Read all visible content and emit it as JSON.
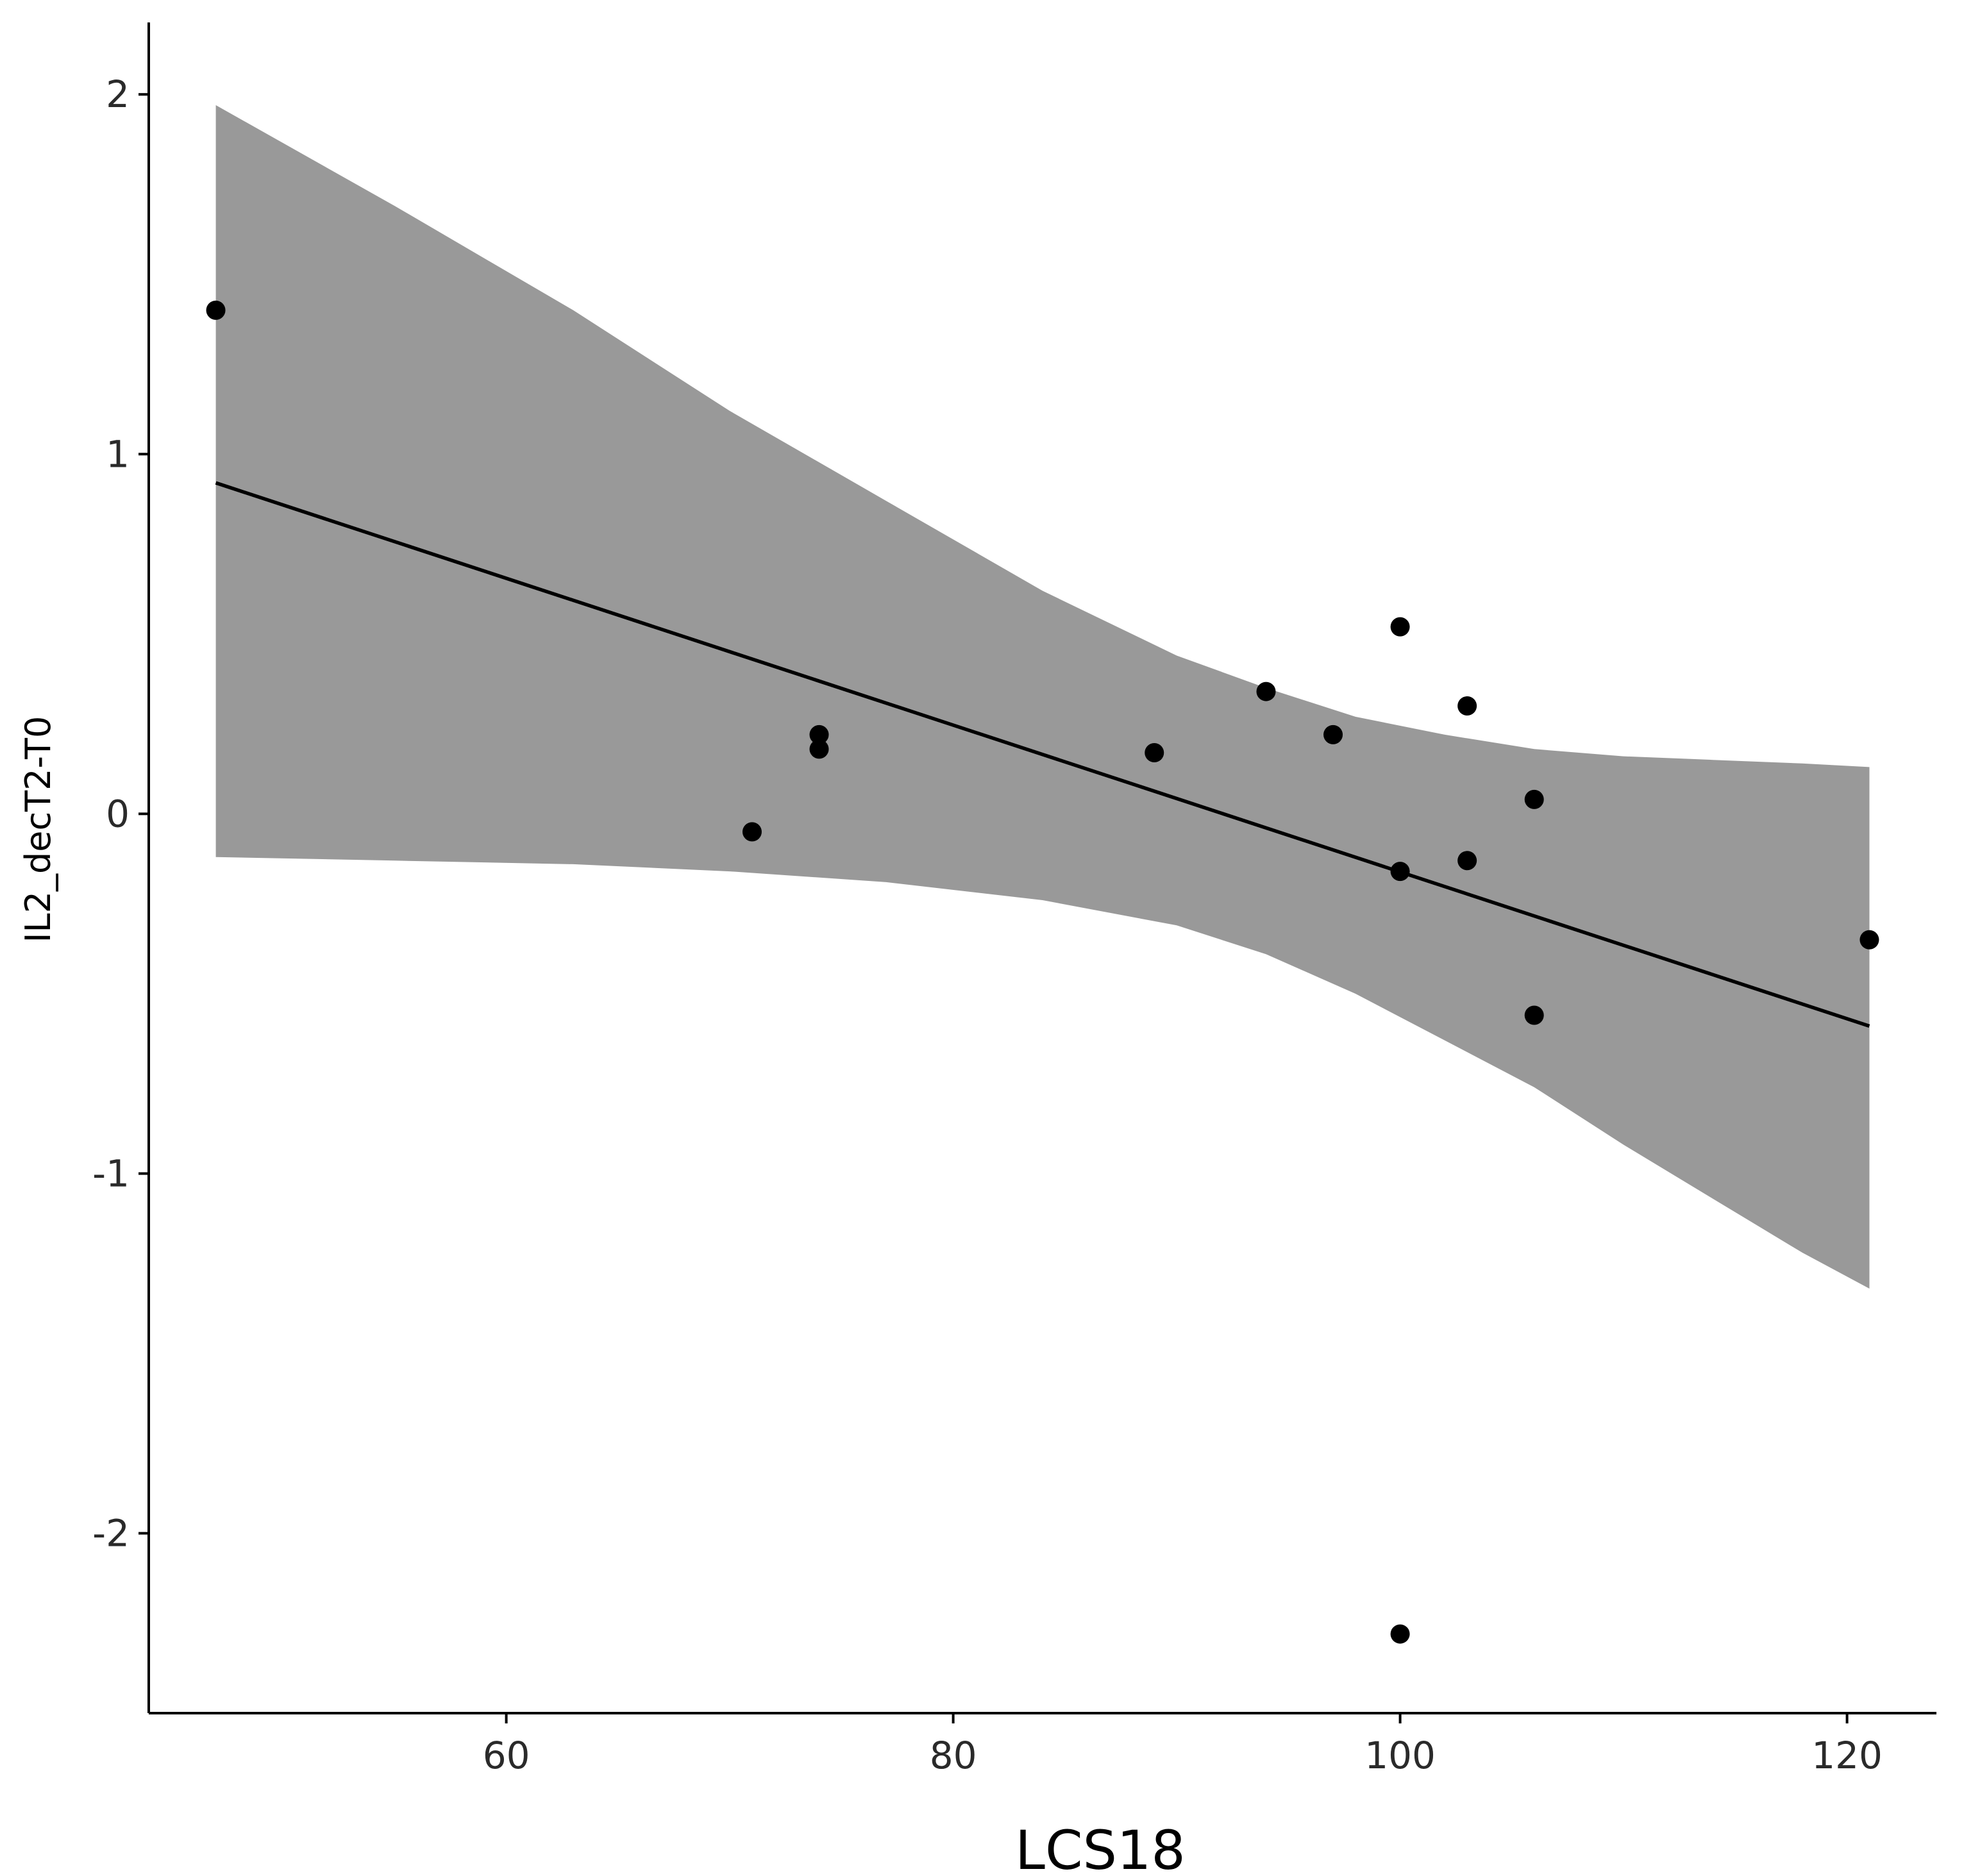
{
  "chart_data": {
    "type": "scatter",
    "xlabel": "LCS18",
    "ylabel": "IL2_decT2-T0",
    "xlim": [
      44,
      124
    ],
    "ylim": [
      -2.5,
      2.2
    ],
    "xticks": [
      60,
      80,
      100,
      120
    ],
    "yticks": [
      -2,
      -1,
      0,
      1,
      2
    ],
    "x_tick_labels": [
      "60",
      "80",
      "100",
      "120"
    ],
    "y_tick_labels": [
      "-2",
      "-1",
      "0",
      "1",
      "2"
    ],
    "grid": false,
    "points": [
      {
        "x": 47,
        "y": 1.4
      },
      {
        "x": 71,
        "y": -0.05
      },
      {
        "x": 74,
        "y": 0.22
      },
      {
        "x": 74,
        "y": 0.18
      },
      {
        "x": 89,
        "y": 0.17
      },
      {
        "x": 94,
        "y": 0.34
      },
      {
        "x": 97,
        "y": 0.22
      },
      {
        "x": 100,
        "y": 0.52
      },
      {
        "x": 100,
        "y": -0.16
      },
      {
        "x": 100,
        "y": -2.28
      },
      {
        "x": 103,
        "y": 0.3
      },
      {
        "x": 103,
        "y": -0.13
      },
      {
        "x": 106,
        "y": 0.04
      },
      {
        "x": 106,
        "y": -0.56
      },
      {
        "x": 121,
        "y": -0.35
      }
    ],
    "regression": {
      "x": [
        47,
        121
      ],
      "y": [
        0.92,
        -0.59
      ]
    },
    "confidence_band": [
      {
        "x": 47,
        "lower": -0.12,
        "upper": 1.97
      },
      {
        "x": 55,
        "lower": -0.13,
        "upper": 1.69
      },
      {
        "x": 63,
        "lower": -0.14,
        "upper": 1.4
      },
      {
        "x": 70,
        "lower": -0.16,
        "upper": 1.12
      },
      {
        "x": 77,
        "lower": -0.19,
        "upper": 0.87
      },
      {
        "x": 84,
        "lower": -0.24,
        "upper": 0.62
      },
      {
        "x": 90,
        "lower": -0.31,
        "upper": 0.44
      },
      {
        "x": 94,
        "lower": -0.39,
        "upper": 0.35
      },
      {
        "x": 98,
        "lower": -0.5,
        "upper": 0.27
      },
      {
        "x": 102,
        "lower": -0.63,
        "upper": 0.22
      },
      {
        "x": 106,
        "lower": -0.76,
        "upper": 0.18
      },
      {
        "x": 110,
        "lower": -0.92,
        "upper": 0.16
      },
      {
        "x": 114,
        "lower": -1.07,
        "upper": 0.15
      },
      {
        "x": 118,
        "lower": -1.22,
        "upper": 0.14
      },
      {
        "x": 121,
        "lower": -1.32,
        "upper": 0.13
      }
    ],
    "colors": {
      "points": "#000000",
      "line": "#000000",
      "band": "#999999",
      "axis": "#000000"
    }
  }
}
